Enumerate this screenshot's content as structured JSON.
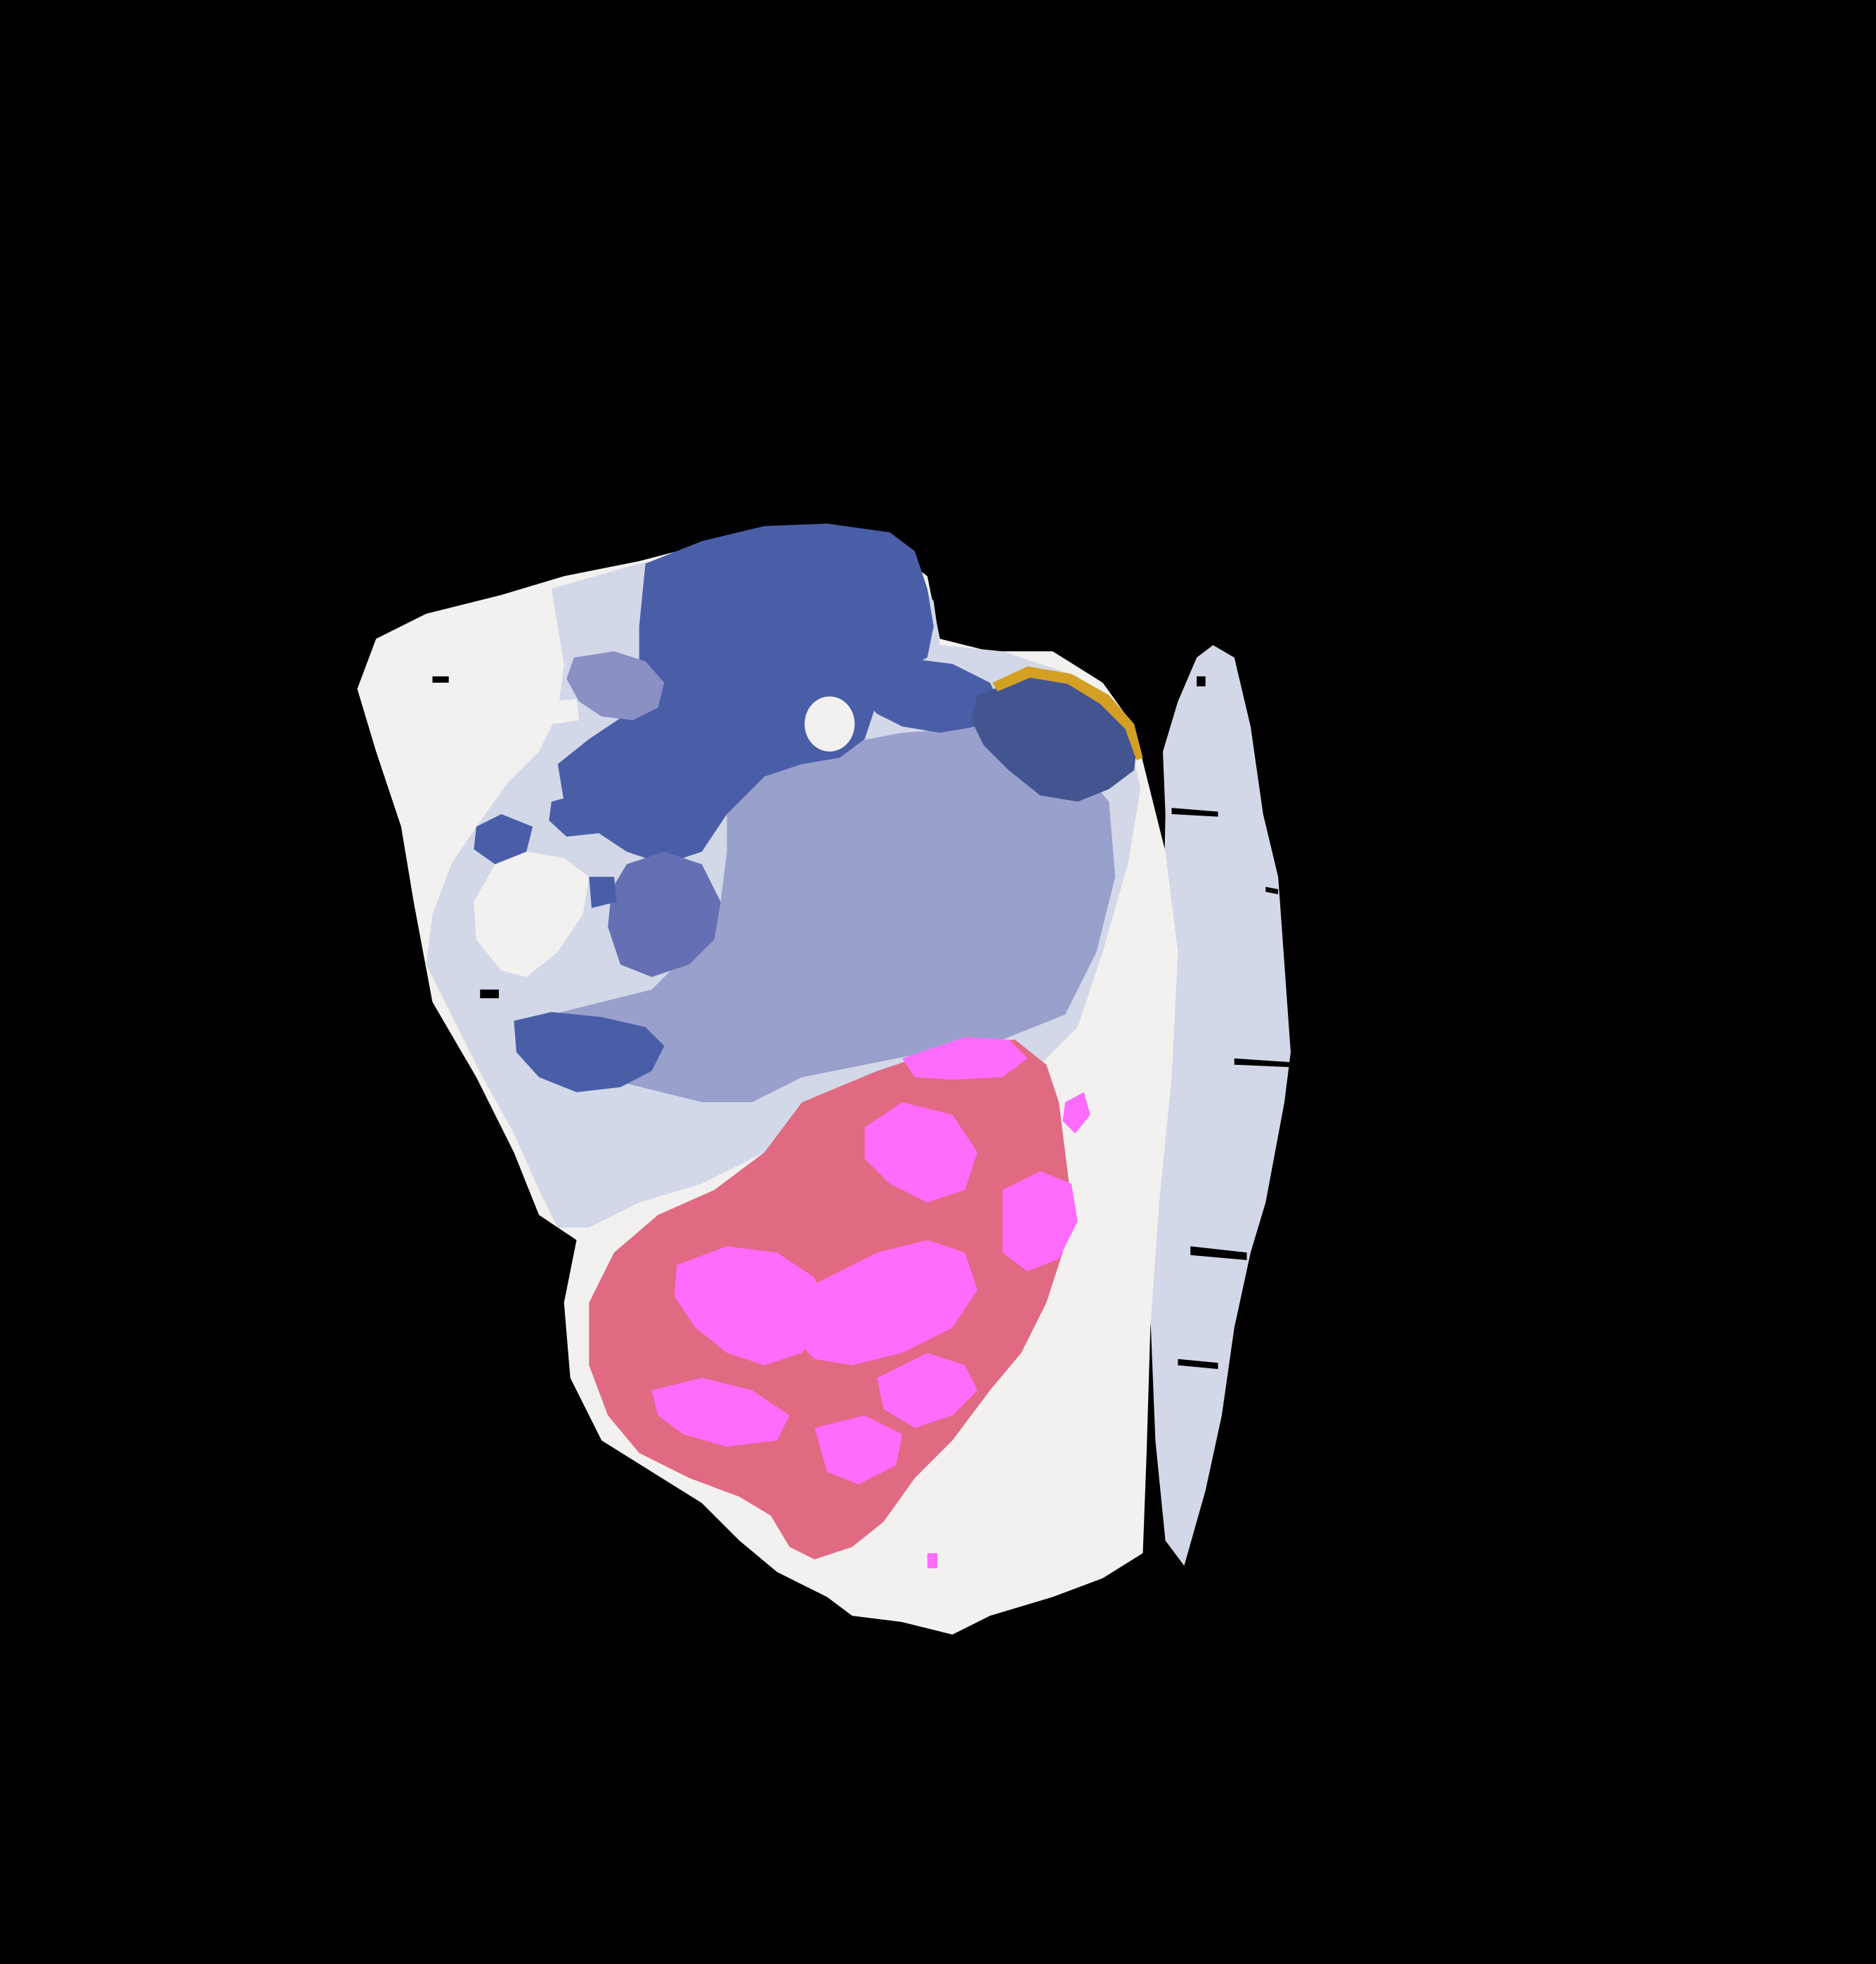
{
  "background": "#000000",
  "regions": [
    {
      "name": "tissue-bright",
      "color": "#f2f1f0"
    },
    {
      "name": "tissue-light-lavender",
      "color": "#d2d8e8"
    },
    {
      "name": "tissue-medium-lavender",
      "color": "#9aa0cc"
    },
    {
      "name": "tissue-dark-blue",
      "color": "#4a5ea8"
    },
    {
      "name": "tissue-slate-blue",
      "color": "#425591"
    },
    {
      "name": "tissue-light-purple",
      "color": "#8a8fc4"
    },
    {
      "name": "tissue-medium-blue",
      "color": "#6570b4"
    },
    {
      "name": "tissue-salmon-pink",
      "color": "#e06a82"
    },
    {
      "name": "tissue-magenta",
      "color": "#fd6cfc"
    },
    {
      "name": "tissue-gold-rim",
      "color": "#d4a024"
    },
    {
      "name": "void-black",
      "color": "#000000"
    }
  ]
}
